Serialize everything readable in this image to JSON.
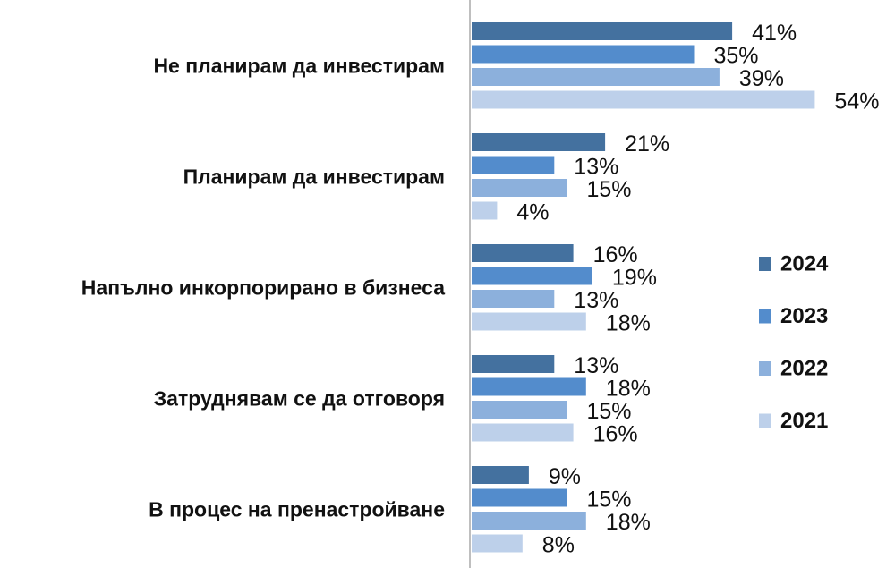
{
  "chart_data": {
    "type": "bar",
    "orientation": "horizontal",
    "categories": [
      "Не планирам да инвестирам",
      "Планирам да инвестирам",
      "Напълно инкорпорирано в бизнеса",
      "Затруднявам се да отговоря",
      "В процес на пренастройване"
    ],
    "series": [
      {
        "name": "2024",
        "color": "#44719f",
        "values": [
          41,
          21,
          16,
          13,
          9
        ]
      },
      {
        "name": "2023",
        "color": "#538ccc",
        "values": [
          35,
          13,
          19,
          18,
          15
        ]
      },
      {
        "name": "2022",
        "color": "#8cb0dc",
        "values": [
          39,
          15,
          13,
          15,
          18
        ]
      },
      {
        "name": "2021",
        "color": "#bdd0ea",
        "values": [
          54,
          4,
          18,
          16,
          8
        ]
      }
    ],
    "value_suffix": "%",
    "xlim": [
      0,
      60
    ],
    "legend_position": "right",
    "grid": false
  }
}
